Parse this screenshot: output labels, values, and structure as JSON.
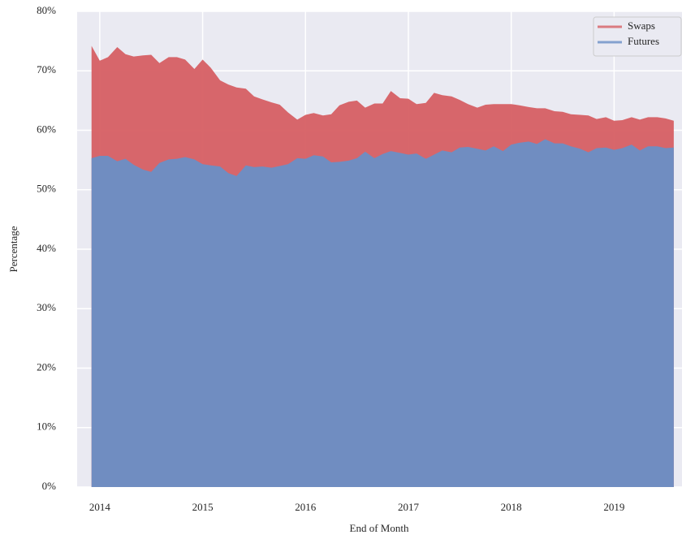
{
  "chart_data": {
    "type": "area",
    "x_label": "End of Month",
    "y_label": "Percentage",
    "x": [
      2013.92,
      2014.0,
      2014.08,
      2014.17,
      2014.25,
      2014.33,
      2014.42,
      2014.5,
      2014.58,
      2014.67,
      2014.75,
      2014.83,
      2014.92,
      2015.0,
      2015.08,
      2015.17,
      2015.25,
      2015.33,
      2015.42,
      2015.5,
      2015.58,
      2015.67,
      2015.75,
      2015.83,
      2015.92,
      2016.0,
      2016.08,
      2016.17,
      2016.25,
      2016.33,
      2016.42,
      2016.5,
      2016.58,
      2016.67,
      2016.75,
      2016.83,
      2016.92,
      2017.0,
      2017.08,
      2017.17,
      2017.25,
      2017.33,
      2017.42,
      2017.5,
      2017.58,
      2017.67,
      2017.75,
      2017.83,
      2017.92,
      2018.0,
      2018.08,
      2018.17,
      2018.25,
      2018.33,
      2018.42,
      2018.5,
      2018.58,
      2018.67,
      2018.75,
      2018.83,
      2018.92,
      2019.0,
      2019.08,
      2019.17,
      2019.25,
      2019.33,
      2019.42,
      2019.5,
      2019.58
    ],
    "series": [
      {
        "name": "Swaps",
        "color": "#d65f63",
        "values": [
          74.2,
          71.7,
          72.3,
          74.0,
          72.8,
          72.4,
          72.6,
          72.7,
          71.3,
          72.3,
          72.3,
          71.9,
          70.3,
          71.9,
          70.5,
          68.4,
          67.7,
          67.2,
          67.0,
          65.7,
          65.2,
          64.7,
          64.3,
          63.0,
          61.8,
          62.6,
          62.9,
          62.5,
          62.7,
          64.2,
          64.8,
          65.0,
          63.8,
          64.5,
          64.5,
          66.6,
          65.4,
          65.3,
          64.4,
          64.6,
          66.3,
          65.9,
          65.7,
          65.1,
          64.4,
          63.8,
          64.3,
          64.4,
          64.4,
          64.4,
          64.2,
          63.9,
          63.7,
          63.7,
          63.2,
          63.1,
          62.7,
          62.6,
          62.5,
          61.9,
          62.2,
          61.6,
          61.7,
          62.2,
          61.8,
          62.2,
          62.2,
          62.0,
          61.6
        ]
      },
      {
        "name": "Futures",
        "color": "#6a8fc6",
        "values": [
          55.3,
          55.7,
          55.7,
          54.8,
          55.2,
          54.2,
          53.4,
          53.0,
          54.5,
          55.1,
          55.2,
          55.5,
          55.1,
          54.3,
          54.1,
          53.9,
          52.8,
          52.3,
          54.1,
          53.8,
          53.9,
          53.7,
          54.0,
          54.3,
          55.3,
          55.2,
          55.8,
          55.6,
          54.6,
          54.7,
          54.9,
          55.3,
          56.4,
          55.3,
          56.0,
          56.5,
          56.2,
          55.9,
          56.1,
          55.2,
          55.9,
          56.6,
          56.3,
          57.1,
          57.2,
          56.9,
          56.6,
          57.3,
          56.5,
          57.6,
          57.9,
          58.1,
          57.7,
          58.5,
          57.8,
          57.8,
          57.3,
          56.9,
          56.3,
          57.0,
          57.1,
          56.7,
          57.0,
          57.6,
          56.6,
          57.3,
          57.3,
          57.0,
          57.1
        ]
      }
    ],
    "xlim": [
      2013.78,
      2019.66
    ],
    "xticks": [
      2014,
      2015,
      2016,
      2017,
      2018,
      2019
    ],
    "ylim": [
      0,
      80
    ],
    "yticks": [
      {
        "value": 0,
        "label": "0%"
      },
      {
        "value": 10,
        "label": "10%"
      },
      {
        "value": 20,
        "label": "20%"
      },
      {
        "value": 30,
        "label": "30%"
      },
      {
        "value": 40,
        "label": "40%"
      },
      {
        "value": 50,
        "label": "50%"
      },
      {
        "value": 60,
        "label": "60%"
      },
      {
        "value": 70,
        "label": "70%"
      },
      {
        "value": 80,
        "label": "80%"
      }
    ],
    "grid": true,
    "legend": "upper right"
  }
}
